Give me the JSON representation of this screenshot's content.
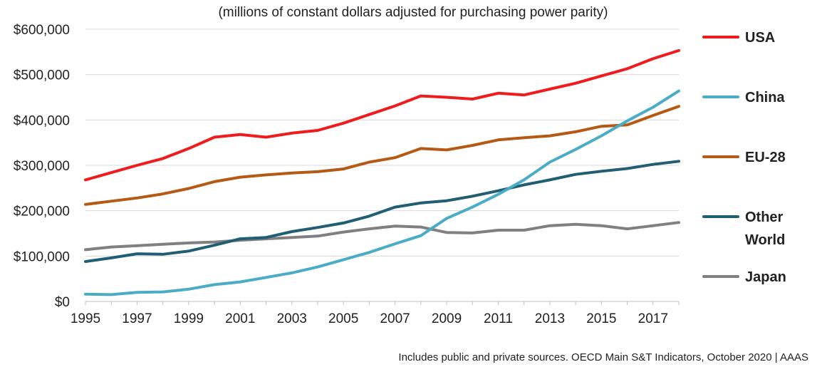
{
  "chart_data": {
    "type": "line",
    "subtitle": "(millions of constant dollars adjusted for purchasing power parity)",
    "footnote": "Includes public and private sources. OECD Main S&T Indicators, October 2020 | AAAS",
    "xlabel": "",
    "ylabel": "",
    "ylim": [
      0,
      600000
    ],
    "xlim": [
      1995,
      2018
    ],
    "grid": true,
    "legend_position": "right",
    "y_ticks": [
      0,
      100000,
      200000,
      300000,
      400000,
      500000,
      600000
    ],
    "y_tick_labels": [
      "$0",
      "$100,000",
      "$200,000",
      "$300,000",
      "$400,000",
      "$500,000",
      "$600,000"
    ],
    "x_ticks": [
      1995,
      1997,
      1999,
      2001,
      2003,
      2005,
      2007,
      2009,
      2011,
      2013,
      2015,
      2017
    ],
    "x_tick_labels": [
      "1995",
      "1997",
      "1999",
      "2001",
      "2003",
      "2005",
      "2007",
      "2009",
      "2011",
      "2013",
      "2015",
      "2017"
    ],
    "x": [
      1995,
      1996,
      1997,
      1998,
      1999,
      2000,
      2001,
      2002,
      2003,
      2004,
      2005,
      2006,
      2007,
      2008,
      2009,
      2010,
      2011,
      2012,
      2013,
      2014,
      2015,
      2016,
      2017,
      2018
    ],
    "series": [
      {
        "name": "USA",
        "legend_lines": [
          "USA"
        ],
        "color": "#ee1c1c",
        "values": [
          268000,
          284000,
          300000,
          315000,
          337000,
          362000,
          368000,
          362000,
          371000,
          377000,
          393000,
          412000,
          431000,
          453000,
          450000,
          446000,
          459000,
          455000,
          468000,
          481000,
          497000,
          513000,
          535000,
          553000
        ]
      },
      {
        "name": "China",
        "legend_lines": [
          "China"
        ],
        "color": "#4bacc6",
        "values": [
          16000,
          15000,
          20000,
          21000,
          27000,
          37000,
          43000,
          53000,
          63000,
          76000,
          92000,
          108000,
          127000,
          145000,
          183000,
          208000,
          236000,
          268000,
          307000,
          335000,
          365000,
          398000,
          428000,
          464000
        ]
      },
      {
        "name": "EU-28",
        "legend_lines": [
          "EU-28"
        ],
        "color": "#b55a14",
        "values": [
          214000,
          221000,
          228000,
          237000,
          249000,
          264000,
          274000,
          279000,
          283000,
          286000,
          292000,
          307000,
          317000,
          337000,
          334000,
          344000,
          356000,
          361000,
          365000,
          374000,
          386000,
          389000,
          410000,
          430000
        ]
      },
      {
        "name": "Other World",
        "legend_lines": [
          "Other",
          "World"
        ],
        "color": "#1f5e73",
        "values": [
          88000,
          96000,
          105000,
          104000,
          111000,
          124000,
          138000,
          141000,
          154000,
          163000,
          173000,
          188000,
          208000,
          217000,
          222000,
          232000,
          244000,
          257000,
          268000,
          280000,
          287000,
          293000,
          302000,
          309000
        ]
      },
      {
        "name": "Japan",
        "legend_lines": [
          "Japan"
        ],
        "color": "#808080",
        "values": [
          114000,
          120000,
          123000,
          126000,
          129000,
          131000,
          135000,
          138000,
          141000,
          144000,
          153000,
          160000,
          166000,
          164000,
          152000,
          151000,
          157000,
          157000,
          167000,
          170000,
          167000,
          160000,
          167000,
          174000
        ]
      }
    ]
  }
}
